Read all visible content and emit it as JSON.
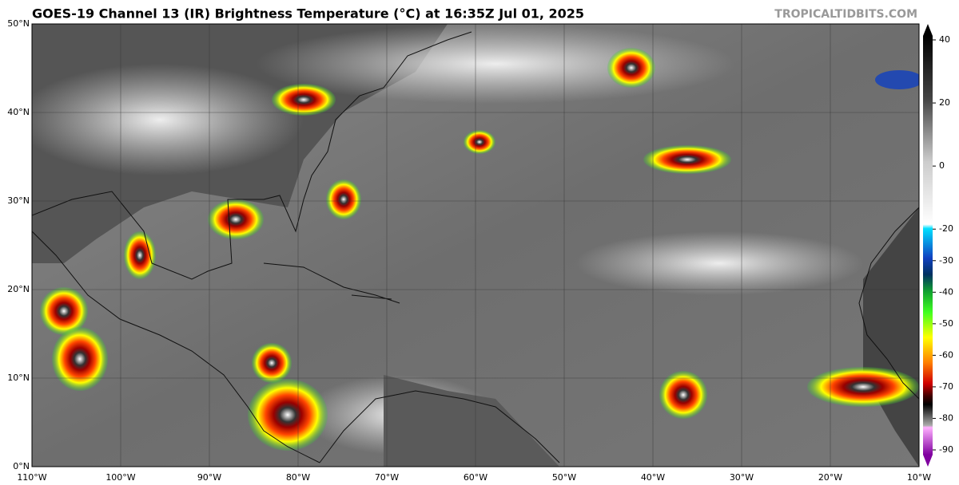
{
  "title": "GOES-19 Channel 13 (IR) Brightness Temperature (°C) at 16:35Z Jul 01, 2025",
  "credit": "TROPICALTIDBITS.COM",
  "lat_labels": [
    "0°N",
    "10°N",
    "20°N",
    "30°N",
    "40°N",
    "50°N"
  ],
  "lon_labels": [
    "110°W",
    "100°W",
    "90°W",
    "80°W",
    "70°W",
    "60°W",
    "50°W",
    "40°W",
    "30°W",
    "20°W",
    "10°W"
  ],
  "colorbar": {
    "ticks": [
      40,
      20,
      0,
      -20,
      -30,
      -40,
      -50,
      -60,
      -70,
      -80,
      -90
    ]
  }
}
